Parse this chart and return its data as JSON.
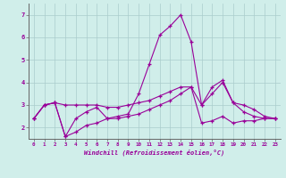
{
  "background_color": "#d0eeea",
  "grid_color": "#aacccc",
  "line_color": "#990099",
  "xlabel": "Windchill (Refroidissement éolien,°C)",
  "x_hours": [
    0,
    1,
    2,
    3,
    4,
    5,
    6,
    7,
    8,
    9,
    10,
    11,
    12,
    13,
    14,
    15,
    16,
    17,
    18,
    19,
    20,
    21,
    22,
    23
  ],
  "line1": [
    2.4,
    3.0,
    3.1,
    1.6,
    2.4,
    2.7,
    2.9,
    2.4,
    2.5,
    2.6,
    3.5,
    4.8,
    6.1,
    6.5,
    7.0,
    5.8,
    3.0,
    3.8,
    4.1,
    3.1,
    2.7,
    2.5,
    2.4,
    2.4
  ],
  "line2": [
    2.4,
    3.0,
    3.1,
    3.0,
    3.0,
    3.0,
    3.0,
    2.9,
    2.9,
    3.0,
    3.1,
    3.2,
    3.4,
    3.6,
    3.8,
    3.8,
    3.0,
    3.5,
    4.0,
    3.1,
    3.0,
    2.8,
    2.5,
    2.4
  ],
  "line3": [
    2.4,
    3.0,
    3.1,
    1.6,
    1.8,
    2.1,
    2.2,
    2.4,
    2.4,
    2.5,
    2.6,
    2.8,
    3.0,
    3.2,
    3.5,
    3.8,
    2.2,
    2.3,
    2.5,
    2.2,
    2.3,
    2.3,
    2.4,
    2.4
  ],
  "ylim": [
    1.5,
    7.5
  ],
  "yticks": [
    2,
    3,
    4,
    5,
    6,
    7
  ],
  "xlim": [
    -0.5,
    23.5
  ],
  "xticks": [
    0,
    1,
    2,
    3,
    4,
    5,
    6,
    7,
    8,
    9,
    10,
    11,
    12,
    13,
    14,
    15,
    16,
    17,
    18,
    19,
    20,
    21,
    22,
    23
  ]
}
